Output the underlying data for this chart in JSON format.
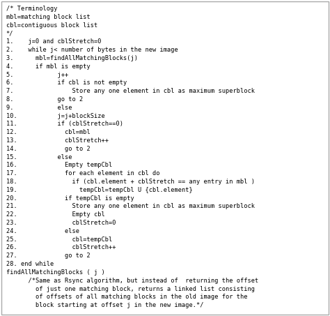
{
  "bg_color": "#ffffff",
  "border_color": "#aaaaaa",
  "text_color": "#000000",
  "font_family": "monospace",
  "font_size": 6.2,
  "lines": [
    "/* Terminology",
    "mbl=matching block list",
    "cbl=contiguous block list",
    "*/",
    "1.    j=0 and cblStretch=0",
    "2.    while j< number of bytes in the new image",
    "3.      mbl=findAllMatchingBlocks(j)",
    "4.      if mbl is empty",
    "5.            j++",
    "6.            if cbl is not empty",
    "7.                Store any one element in cbl as maximum superblock",
    "8.            go to 2",
    "9.            else",
    "10.           j=j+blockSize",
    "11.           if (cblStretch==0)",
    "12.             cbl=mbl",
    "13.             cblStretch++",
    "14.             go to 2",
    "15.           else",
    "16.             Empty tempCbl",
    "17.             for each element in cbl do",
    "18.               if (cbl.element + cblStretch == any entry in mbl )",
    "19.                 tempCbl=tempCbl U {cbl.element}",
    "20.             if tempCbl is empty",
    "21.               Store any one element in cbl as maximum superblock",
    "22.               Empty cbl",
    "23.               cblStretch=0",
    "24.             else",
    "25.               cbl=tempCbl",
    "26.               cblStretch++",
    "27.             go to 2",
    "28. end while",
    "findAllMatchingBlocks ( j )",
    "      /*Same as Rsync algorithm, but instead of  returning the offset",
    "        of just one matching block, returns a linked list consisting",
    "        of offsets of all matching blocks in the old image for the",
    "        block starting at offset j in the new image.*/"
  ],
  "figwidth": 4.74,
  "figheight": 4.53,
  "dpi": 100
}
